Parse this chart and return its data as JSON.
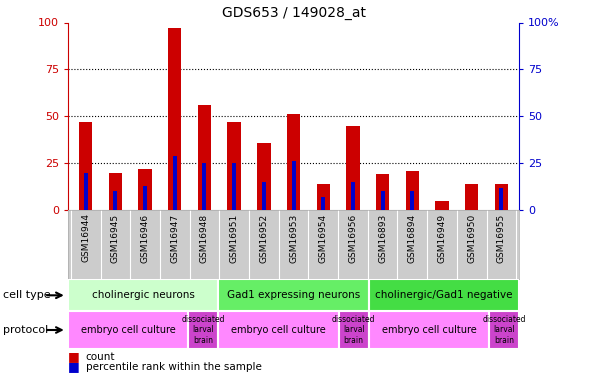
{
  "title": "GDS653 / 149028_at",
  "samples": [
    "GSM16944",
    "GSM16945",
    "GSM16946",
    "GSM16947",
    "GSM16948",
    "GSM16951",
    "GSM16952",
    "GSM16953",
    "GSM16954",
    "GSM16956",
    "GSM16893",
    "GSM16894",
    "GSM16949",
    "GSM16950",
    "GSM16955"
  ],
  "counts_all": [
    47,
    20,
    22,
    97,
    56,
    47,
    36,
    51,
    14,
    45,
    19,
    21,
    5,
    14,
    14
  ],
  "percentile": [
    20,
    10,
    13,
    29,
    25,
    25,
    15,
    26,
    7,
    15,
    10,
    10,
    0,
    0,
    12
  ],
  "bar_color": "#cc0000",
  "pct_color": "#0000cc",
  "cell_types": [
    {
      "label": "cholinergic neurons",
      "start": 0,
      "end": 5,
      "color": "#ccffcc"
    },
    {
      "label": "Gad1 expressing neurons",
      "start": 5,
      "end": 10,
      "color": "#66ee66"
    },
    {
      "label": "cholinergic/Gad1 negative",
      "start": 10,
      "end": 15,
      "color": "#44dd44"
    }
  ],
  "protocols": [
    {
      "label": "embryo cell culture",
      "start": 0,
      "end": 4,
      "color": "#ff88ff"
    },
    {
      "label": "dissociated\nlarval\nbrain",
      "start": 4,
      "end": 5,
      "color": "#cc44cc"
    },
    {
      "label": "embryo cell culture",
      "start": 5,
      "end": 9,
      "color": "#ff88ff"
    },
    {
      "label": "dissociated\nlarval\nbrain",
      "start": 9,
      "end": 10,
      "color": "#cc44cc"
    },
    {
      "label": "embryo cell culture",
      "start": 10,
      "end": 14,
      "color": "#ff88ff"
    },
    {
      "label": "dissociated\nlarval\nbrain",
      "start": 14,
      "end": 15,
      "color": "#cc44cc"
    }
  ],
  "left_ytick_color": "#cc0000",
  "right_ytick_color": "#0000cc",
  "sample_bg": "#cccccc",
  "fig_w": 5.9,
  "fig_h": 3.75,
  "dpi": 100
}
